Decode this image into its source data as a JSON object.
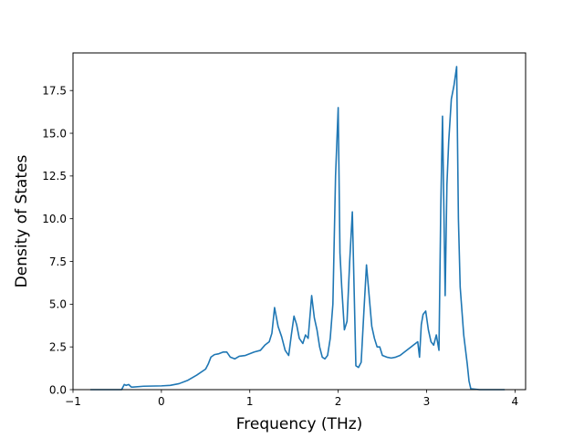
{
  "chart_data": {
    "type": "line",
    "title": "",
    "xlabel": "Frequency (THz)",
    "ylabel": "Density of States",
    "xlim": [
      -1.0,
      4.12
    ],
    "ylim": [
      0.0,
      19.7
    ],
    "grid": false,
    "legend": "none",
    "x_ticks": [
      -1,
      0,
      1,
      2,
      3,
      4
    ],
    "y_ticks": [
      0.0,
      2.5,
      5.0,
      7.5,
      10.0,
      12.5,
      15.0,
      17.5
    ],
    "x_tick_labels": [
      "−1",
      "0",
      "1",
      "2",
      "3",
      "4"
    ],
    "y_tick_labels": [
      "0.0",
      "2.5",
      "5.0",
      "7.5",
      "10.0",
      "12.5",
      "15.0",
      "17.5"
    ],
    "series": [
      {
        "color": "#1f77b4",
        "x": [
          -0.8,
          -0.45,
          -0.42,
          -0.4,
          -0.37,
          -0.34,
          -0.32,
          -0.2,
          0.0,
          0.1,
          0.2,
          0.3,
          0.4,
          0.5,
          0.53,
          0.56,
          0.6,
          0.65,
          0.7,
          0.74,
          0.78,
          0.83,
          0.88,
          0.95,
          1.05,
          1.12,
          1.17,
          1.22,
          1.25,
          1.28,
          1.32,
          1.36,
          1.4,
          1.44,
          1.47,
          1.5,
          1.53,
          1.56,
          1.6,
          1.63,
          1.66,
          1.7,
          1.73,
          1.76,
          1.79,
          1.82,
          1.85,
          1.88,
          1.91,
          1.94,
          1.97,
          2.0,
          2.02,
          2.04,
          2.07,
          2.1,
          2.13,
          2.16,
          2.2,
          2.23,
          2.26,
          2.29,
          2.32,
          2.35,
          2.38,
          2.41,
          2.44,
          2.47,
          2.5,
          2.55,
          2.6,
          2.65,
          2.7,
          2.75,
          2.8,
          2.85,
          2.9,
          2.92,
          2.94,
          2.96,
          2.99,
          3.02,
          3.05,
          3.08,
          3.11,
          3.14,
          3.16,
          3.18,
          3.21,
          3.23,
          3.25,
          3.28,
          3.31,
          3.34,
          3.36,
          3.38,
          3.42,
          3.46,
          3.48,
          3.5,
          3.6,
          3.88
        ],
        "y": [
          0.0,
          0.0,
          0.3,
          0.25,
          0.3,
          0.15,
          0.15,
          0.2,
          0.22,
          0.25,
          0.35,
          0.55,
          0.85,
          1.2,
          1.5,
          1.9,
          2.05,
          2.1,
          2.2,
          2.2,
          1.9,
          1.8,
          1.95,
          2.0,
          2.2,
          2.3,
          2.6,
          2.8,
          3.3,
          4.8,
          3.7,
          3.1,
          2.3,
          2.0,
          3.2,
          4.3,
          3.8,
          3.0,
          2.7,
          3.2,
          3.0,
          5.5,
          4.2,
          3.5,
          2.5,
          1.9,
          1.8,
          2.0,
          3.0,
          5.0,
          12.5,
          16.5,
          8.0,
          6.0,
          3.5,
          4.0,
          7.5,
          10.4,
          1.4,
          1.3,
          1.6,
          4.5,
          7.3,
          5.5,
          3.7,
          3.0,
          2.5,
          2.5,
          2.0,
          1.9,
          1.85,
          1.9,
          2.0,
          2.2,
          2.4,
          2.6,
          2.8,
          1.9,
          3.8,
          4.4,
          4.6,
          3.5,
          2.8,
          2.6,
          3.2,
          2.3,
          10.5,
          16.0,
          5.5,
          12.0,
          14.5,
          17.0,
          17.8,
          18.9,
          10.0,
          6.0,
          3.2,
          1.5,
          0.5,
          0.05,
          0.0,
          0.0
        ]
      }
    ]
  }
}
